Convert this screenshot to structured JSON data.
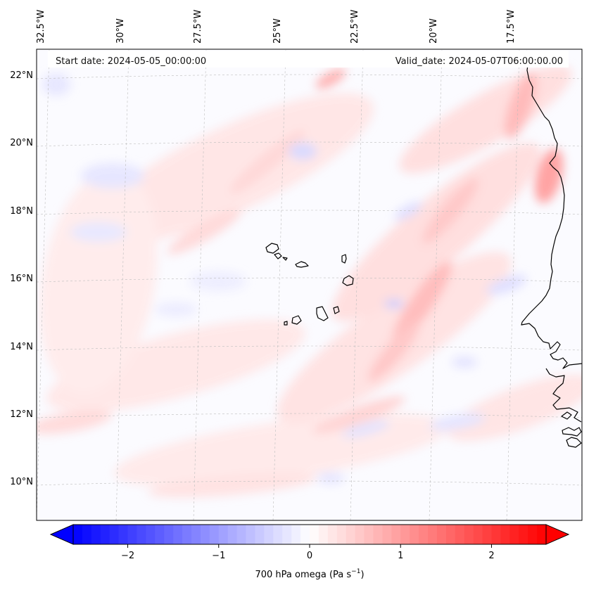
{
  "header": {
    "start_date": "Start date: 2024-05-05_00:00:00",
    "valid_date": "Valid_date: 2024-05-07T06:00:00.00"
  },
  "longitude_labels": [
    "32.5°W",
    "30°W",
    "27.5°W",
    "25°W",
    "22.5°W",
    "20°W",
    "17.5°W"
  ],
  "latitude_labels": [
    "22°N",
    "20°N",
    "18°N",
    "16°N",
    "14°N",
    "12°N",
    "10°N"
  ],
  "colorbar": {
    "label_text": "700 hPa omega (Pa s",
    "label_exponent": "−1",
    "label_close": ")",
    "ticks": [
      "−2",
      "−1",
      "0",
      "1",
      "2"
    ],
    "range": [
      -2.6,
      2.6
    ],
    "colors": {
      "low": "#0000ff",
      "mid": "#ffffff",
      "high": "#ff0000"
    }
  },
  "map": {
    "variable": "700 hPa omega",
    "units": "Pa s-1",
    "lon_range": [
      -33,
      -15.5
    ],
    "lat_range": [
      9,
      22.8
    ],
    "coastline_color": "#000000"
  }
}
